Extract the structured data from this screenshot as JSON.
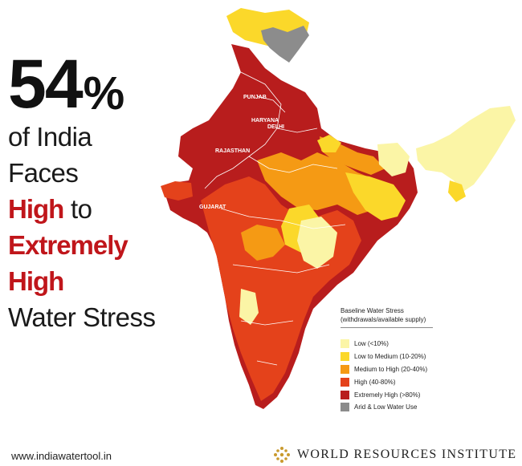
{
  "headline": {
    "percent_number": "54",
    "percent_sign": "%",
    "line1": "of India",
    "line2": "Faces",
    "emph1": "High",
    "line3_rest": " to",
    "emph2": "Extremely",
    "emph3": "High",
    "line4": "Water Stress"
  },
  "map": {
    "region_labels": {
      "punjab": "PUNJAB",
      "haryana": "HARYANA",
      "delhi": "DELHI",
      "rajasthan": "RAJASTHAN",
      "gujarat": "GUJARAT"
    }
  },
  "legend": {
    "title_line1": "Baseline Water Stress",
    "title_line2": "(withdrawals/available supply)",
    "items": [
      {
        "label": "Low (<10%)",
        "color": "#fbf5a6"
      },
      {
        "label": "Low to Medium (10-20%)",
        "color": "#fbd82a"
      },
      {
        "label": "Medium to High (20-40%)",
        "color": "#f59a14"
      },
      {
        "label": "High (40-80%)",
        "color": "#e4421b"
      },
      {
        "label": "Extremely High (>80%)",
        "color": "#b81d1d"
      },
      {
        "label": "Arid & Low Water Use",
        "color": "#8c8c8c"
      }
    ]
  },
  "footer": {
    "website": "www.indiawatertool.in",
    "organization": "WORLD RESOURCES INSTITUTE"
  },
  "colors": {
    "accent_red": "#c0161b",
    "text_dark": "#111111"
  }
}
